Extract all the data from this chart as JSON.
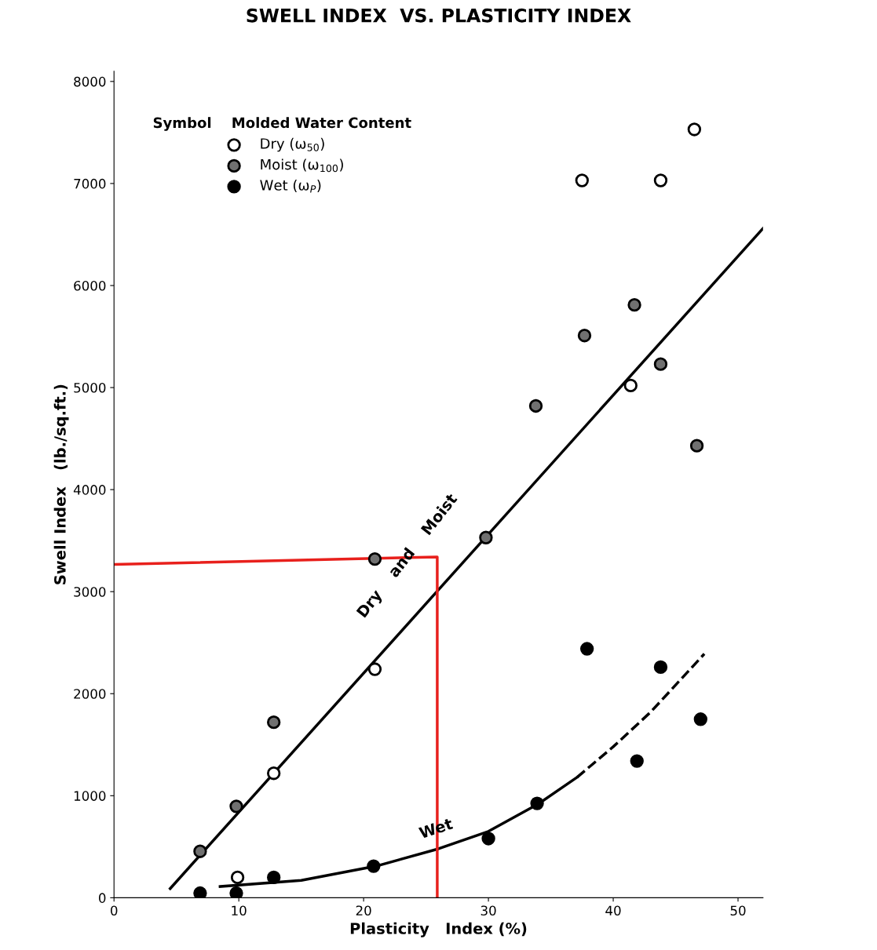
{
  "chart_data": {
    "type": "scatter",
    "title": "SWELL INDEX  VS. PLASTICITY INDEX",
    "xlabel": "Plasticity   Index (%)",
    "ylabel": "Swell Index   (lb./sq.ft.)",
    "legend_title": "Symbol    Molded Water Content",
    "xlim": [
      0,
      52
    ],
    "ylim": [
      0,
      8100
    ],
    "xticks": [
      0,
      10,
      20,
      30,
      40,
      50
    ],
    "yticks": [
      0,
      1000,
      2000,
      3000,
      4000,
      5000,
      6000,
      7000,
      8000
    ],
    "grid": false,
    "legend": "top left",
    "marker": "circle",
    "series": [
      {
        "name": "Dry (ω$_{50}$)",
        "color": "#ffffff",
        "x": [
          9.9,
          12.8,
          20.9,
          41.4,
          37.5,
          43.8,
          46.5
        ],
        "values": [
          200,
          1220,
          2240,
          5020,
          7030,
          7030,
          7530
        ]
      },
      {
        "name": "Moist (ω$_{100}$)",
        "color": "#707070",
        "x": [
          6.9,
          9.8,
          12.8,
          20.9,
          29.8,
          33.8,
          37.7,
          41.7,
          43.8,
          46.7
        ],
        "values": [
          455,
          896,
          1720,
          3320,
          3530,
          4820,
          5510,
          5810,
          5230,
          4430
        ]
      },
      {
        "name": "Wet (ω$_{P}$)",
        "color": "#000000",
        "x": [
          6.9,
          9.8,
          12.8,
          20.8,
          30.0,
          33.9,
          37.9,
          41.9,
          43.8,
          47.0
        ],
        "values": [
          45,
          45,
          200,
          310,
          580,
          925,
          2440,
          1340,
          2260,
          1750
        ]
      },
      {
        "type": "line",
        "marker": "none",
        "color": "#000000",
        "line_style": "solid",
        "x": [
          4.5,
          52
        ],
        "values": [
          90,
          6560
        ]
      },
      {
        "type": "line",
        "marker": "none",
        "color": "#000000",
        "line_style": "solid",
        "x": [
          8.5,
          15,
          21,
          26,
          30,
          34,
          37.1
        ],
        "values": [
          110,
          170,
          310,
          480,
          650,
          920,
          1180
        ]
      },
      {
        "type": "line",
        "marker": "none",
        "color": "#000000",
        "line_style": "dashed",
        "x": [
          37.1,
          40,
          43,
          47.3
        ],
        "values": [
          1180,
          1480,
          1820,
          2390
        ]
      },
      {
        "type": "line",
        "marker": "none",
        "color": "#e8201c",
        "line_style": "solid",
        "x": [
          0,
          25.9,
          25.9
        ],
        "values": [
          3266,
          3340,
          0
        ]
      }
    ],
    "annotations": [
      {
        "text": "Dry    and    Moist",
        "x": 24,
        "y": 3300
      },
      {
        "text": "Wet",
        "x": 26,
        "y": 600
      }
    ]
  }
}
